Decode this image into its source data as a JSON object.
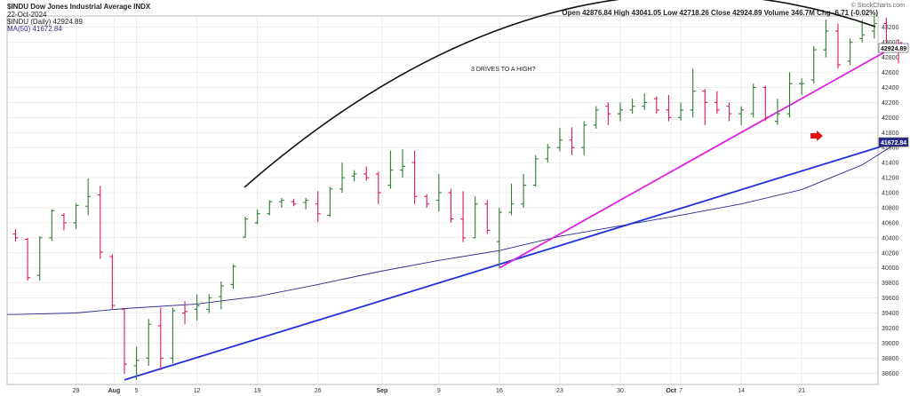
{
  "header": {
    "symbol_line": "$INDU Dow Jones Industrial Average INDX",
    "date": "22-Oct-2024",
    "legend_price": "$INDU (Daily) 42924.89",
    "legend_ma": "MA(50) 41672.84",
    "ohlc": "Open 42876.84  High 43041.05  Low 42718.26  Close 42924.89  Volume 346.7M  Chg -6.71 (-0.02%)",
    "watermark": "© StockCharts.com"
  },
  "colors": {
    "up": "#2e7d32",
    "down": "#d81b60",
    "ma": "#2a2a8c",
    "trend_blue": "#1f2fe0",
    "trend_magenta": "#e020e0",
    "arc": "#111111",
    "arrow": "#e01010",
    "grid": "#e2e2e2"
  },
  "chart_data": {
    "type": "ohlc",
    "title": "$INDU Dow Jones Industrial Average INDX",
    "ylim": [
      38450,
      43350
    ],
    "y_ticks": [
      38600,
      38800,
      39000,
      39200,
      39400,
      39600,
      39800,
      40000,
      40200,
      40400,
      40600,
      40800,
      41000,
      41200,
      41400,
      41600,
      41800,
      42000,
      42200,
      42400,
      42600,
      42800,
      43000,
      43200
    ],
    "x_labels": [
      "29",
      "Aug",
      "5",
      "12",
      "19",
      "26",
      "Sep",
      "9",
      "16",
      "23",
      "30",
      "Oct",
      "7",
      "14",
      "21"
    ],
    "price_labels": {
      "last": "42924.89",
      "ma": "41672.84"
    },
    "annotation": "3 DRIVES TO A HIGH?",
    "bars": [
      {
        "o": 40450,
        "h": 40520,
        "l": 40350,
        "c": 40400
      },
      {
        "o": 40380,
        "h": 40400,
        "l": 39830,
        "c": 39870
      },
      {
        "o": 39900,
        "h": 40420,
        "l": 39830,
        "c": 40400
      },
      {
        "o": 40400,
        "h": 40780,
        "l": 40360,
        "c": 40760
      },
      {
        "o": 40700,
        "h": 40730,
        "l": 40500,
        "c": 40600
      },
      {
        "o": 40600,
        "h": 40860,
        "l": 40520,
        "c": 40830
      },
      {
        "o": 40820,
        "h": 41190,
        "l": 40700,
        "c": 40950
      },
      {
        "o": 40970,
        "h": 41090,
        "l": 40120,
        "c": 40210
      },
      {
        "o": 40150,
        "h": 40180,
        "l": 39450,
        "c": 39500
      },
      {
        "o": 39450,
        "h": 39460,
        "l": 38590,
        "c": 38720
      },
      {
        "o": 38700,
        "h": 38950,
        "l": 38510,
        "c": 38770
      },
      {
        "o": 38800,
        "h": 39320,
        "l": 38700,
        "c": 39250
      },
      {
        "o": 39230,
        "h": 39470,
        "l": 38640,
        "c": 38800
      },
      {
        "o": 38800,
        "h": 39470,
        "l": 38730,
        "c": 39430
      },
      {
        "o": 39400,
        "h": 39560,
        "l": 39250,
        "c": 39420
      },
      {
        "o": 39450,
        "h": 39650,
        "l": 39300,
        "c": 39500
      },
      {
        "o": 39450,
        "h": 39650,
        "l": 39400,
        "c": 39600
      },
      {
        "o": 39620,
        "h": 39820,
        "l": 39450,
        "c": 39760
      },
      {
        "o": 39780,
        "h": 40050,
        "l": 39720,
        "c": 40020
      },
      {
        "o": 40410,
        "h": 40680,
        "l": 40400,
        "c": 40650
      },
      {
        "o": 40600,
        "h": 40780,
        "l": 40580,
        "c": 40720
      },
      {
        "o": 40720,
        "h": 40900,
        "l": 40700,
        "c": 40880
      },
      {
        "o": 40880,
        "h": 40930,
        "l": 40800,
        "c": 40900
      },
      {
        "o": 40880,
        "h": 40920,
        "l": 40820,
        "c": 40850
      },
      {
        "o": 40870,
        "h": 40930,
        "l": 40780,
        "c": 40900
      },
      {
        "o": 40850,
        "h": 41020,
        "l": 40610,
        "c": 40720
      },
      {
        "o": 40700,
        "h": 41080,
        "l": 40680,
        "c": 41050
      },
      {
        "o": 41050,
        "h": 41400,
        "l": 41000,
        "c": 41200
      },
      {
        "o": 41220,
        "h": 41300,
        "l": 41150,
        "c": 41250
      },
      {
        "o": 41250,
        "h": 41350,
        "l": 41160,
        "c": 41200
      },
      {
        "o": 41250,
        "h": 41280,
        "l": 40850,
        "c": 41000
      },
      {
        "o": 41100,
        "h": 41560,
        "l": 41050,
        "c": 41300
      },
      {
        "o": 41300,
        "h": 41580,
        "l": 41200,
        "c": 41350
      },
      {
        "o": 41400,
        "h": 41560,
        "l": 40850,
        "c": 40950
      },
      {
        "o": 40950,
        "h": 40980,
        "l": 40800,
        "c": 40850
      },
      {
        "o": 40900,
        "h": 41250,
        "l": 40750,
        "c": 41000
      },
      {
        "o": 41000,
        "h": 41050,
        "l": 40600,
        "c": 40650
      },
      {
        "o": 40650,
        "h": 41020,
        "l": 40340,
        "c": 40400
      },
      {
        "o": 40400,
        "h": 40950,
        "l": 40400,
        "c": 40850
      },
      {
        "o": 40850,
        "h": 40900,
        "l": 40450,
        "c": 40500
      },
      {
        "o": 40350,
        "h": 40800,
        "l": 40000,
        "c": 40740
      },
      {
        "o": 40740,
        "h": 41120,
        "l": 40700,
        "c": 40850
      },
      {
        "o": 40850,
        "h": 41250,
        "l": 40800,
        "c": 41100
      },
      {
        "o": 41100,
        "h": 41500,
        "l": 41080,
        "c": 41450
      },
      {
        "o": 41450,
        "h": 41650,
        "l": 41400,
        "c": 41600
      },
      {
        "o": 41600,
        "h": 41860,
        "l": 41550,
        "c": 41700
      },
      {
        "o": 41700,
        "h": 41870,
        "l": 41500,
        "c": 41600
      },
      {
        "o": 41600,
        "h": 41950,
        "l": 41500,
        "c": 41900
      },
      {
        "o": 41900,
        "h": 42150,
        "l": 41850,
        "c": 42100
      },
      {
        "o": 42150,
        "h": 42200,
        "l": 41900,
        "c": 42050
      },
      {
        "o": 42050,
        "h": 42200,
        "l": 41950,
        "c": 42100
      },
      {
        "o": 42100,
        "h": 42250,
        "l": 42050,
        "c": 42150
      },
      {
        "o": 42150,
        "h": 42320,
        "l": 42100,
        "c": 42200
      },
      {
        "o": 42250,
        "h": 42280,
        "l": 42050,
        "c": 42100
      },
      {
        "o": 42100,
        "h": 42300,
        "l": 41950,
        "c": 42000
      },
      {
        "o": 42000,
        "h": 42200,
        "l": 41960,
        "c": 42100
      },
      {
        "o": 42100,
        "h": 42650,
        "l": 42000,
        "c": 42350
      },
      {
        "o": 42350,
        "h": 42380,
        "l": 41900,
        "c": 42200
      },
      {
        "o": 42200,
        "h": 42350,
        "l": 42050,
        "c": 42100
      },
      {
        "o": 42150,
        "h": 42200,
        "l": 41950,
        "c": 42050
      },
      {
        "o": 42050,
        "h": 42150,
        "l": 41900,
        "c": 42100
      },
      {
        "o": 42050,
        "h": 42450,
        "l": 42000,
        "c": 42400
      },
      {
        "o": 42400,
        "h": 42420,
        "l": 41950,
        "c": 42000
      },
      {
        "o": 41950,
        "h": 42250,
        "l": 41900,
        "c": 42050
      },
      {
        "o": 42050,
        "h": 42600,
        "l": 42000,
        "c": 42450
      },
      {
        "o": 42450,
        "h": 42520,
        "l": 42300,
        "c": 42450
      },
      {
        "o": 42500,
        "h": 42950,
        "l": 42450,
        "c": 42900
      },
      {
        "o": 42900,
        "h": 43300,
        "l": 42800,
        "c": 43150
      },
      {
        "o": 43150,
        "h": 43250,
        "l": 42650,
        "c": 42700
      },
      {
        "o": 42750,
        "h": 43050,
        "l": 42700,
        "c": 43000
      },
      {
        "o": 43050,
        "h": 43300,
        "l": 43000,
        "c": 43100
      },
      {
        "o": 43150,
        "h": 43350,
        "l": 43050,
        "c": 43250
      },
      {
        "o": 43250,
        "h": 43330,
        "l": 42900,
        "c": 42931.6
      },
      {
        "o": 42876.84,
        "h": 43041.05,
        "l": 42718.26,
        "c": 42924.89
      }
    ],
    "ma50": [
      [
        0,
        39380
      ],
      [
        5,
        39400
      ],
      [
        9,
        39460
      ],
      [
        15,
        39520
      ],
      [
        20,
        39620
      ],
      [
        25,
        39780
      ],
      [
        30,
        39950
      ],
      [
        35,
        40100
      ],
      [
        40,
        40230
      ],
      [
        45,
        40420
      ],
      [
        50,
        40560
      ],
      [
        55,
        40700
      ],
      [
        60,
        40850
      ],
      [
        65,
        41040
      ],
      [
        70,
        41370
      ],
      [
        73,
        41672.84
      ]
    ],
    "trendlines": [
      {
        "name": "blue",
        "from": [
          9,
          38510
        ],
        "to": [
          73.3,
          41700
        ]
      },
      {
        "name": "magenta",
        "from": [
          40,
          40000
        ],
        "to": [
          73.3,
          43000
        ]
      }
    ]
  }
}
